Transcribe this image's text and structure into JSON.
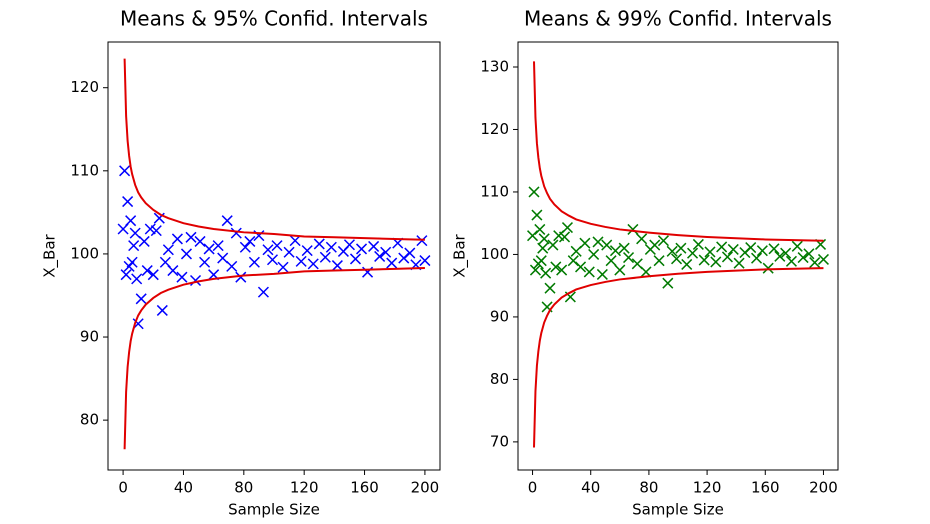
{
  "chart_data": [
    {
      "type": "scatter",
      "title": "Means & 95% Confid. Intervals",
      "xlabel": "Sample Size",
      "ylabel": "X_Bar",
      "xlim": [
        -10,
        210
      ],
      "ylim": [
        74,
        125.5
      ],
      "xticks": [
        0,
        40,
        80,
        120,
        160,
        200
      ],
      "yticks": [
        80,
        90,
        100,
        110,
        120
      ],
      "points": {
        "color": "#0000ff",
        "x": [
          0,
          1,
          2,
          3,
          4,
          5,
          6,
          7,
          8,
          9,
          10,
          12,
          14,
          16,
          18,
          20,
          22,
          24,
          26,
          28,
          30,
          33,
          36,
          39,
          42,
          45,
          48,
          51,
          54,
          57,
          60,
          63,
          66,
          69,
          72,
          75,
          78,
          81,
          84,
          87,
          90,
          93,
          96,
          99,
          102,
          106,
          110,
          114,
          118,
          122,
          126,
          130,
          134,
          138,
          142,
          146,
          150,
          154,
          158,
          162,
          166,
          170,
          174,
          178,
          182,
          186,
          190,
          194,
          198,
          200
        ],
        "y": [
          103,
          110,
          97.5,
          106.3,
          98.5,
          104,
          99,
          101,
          102.5,
          97,
          91.6,
          94.6,
          101.5,
          98,
          103,
          97.5,
          102.8,
          104.3,
          93.2,
          99,
          100.5,
          98,
          101.8,
          97.2,
          100,
          102,
          96.8,
          101.5,
          99,
          100.6,
          97.5,
          101,
          99.5,
          104,
          98.5,
          102.5,
          97.2,
          100.8,
          101.5,
          99,
          102.2,
          95.4,
          100.5,
          99.3,
          101,
          98.4,
          100.2,
          101.6,
          99.1,
          100.4,
          98.8,
          101.2,
          99.6,
          100.8,
          98.6,
          100.3,
          101.1,
          99.4,
          100.6,
          97.8,
          100.9,
          99.7,
          100.2,
          98.9,
          101.3,
          99.5,
          100.1,
          98.7,
          101.6,
          99.2
        ]
      },
      "bounds": {
        "color": "#e00000",
        "x": [
          1,
          2,
          3,
          4,
          5,
          6,
          8,
          10,
          12,
          15,
          20,
          25,
          30,
          40,
          50,
          60,
          80,
          100,
          120,
          140,
          160,
          180,
          200
        ],
        "upper": [
          123.5,
          116.6,
          113.6,
          111.8,
          110.5,
          109.6,
          108.3,
          107.4,
          106.8,
          106.1,
          105.3,
          104.7,
          104.3,
          103.7,
          103.3,
          103.0,
          102.6,
          102.4,
          102.1,
          102.0,
          101.9,
          101.8,
          101.7
        ],
        "lower": [
          76.5,
          83.4,
          86.4,
          88.2,
          89.5,
          90.4,
          91.7,
          92.6,
          93.2,
          93.9,
          94.7,
          95.3,
          95.7,
          96.3,
          96.7,
          97.0,
          97.4,
          97.6,
          97.9,
          98.0,
          98.1,
          98.2,
          98.3
        ]
      }
    },
    {
      "type": "scatter",
      "title": "Means & 99% Confid. Intervals",
      "xlabel": "Sample Size",
      "ylabel": "X_Bar",
      "xlim": [
        -10,
        210
      ],
      "ylim": [
        65.5,
        134
      ],
      "xticks": [
        0,
        40,
        80,
        120,
        160,
        200
      ],
      "yticks": [
        70,
        80,
        90,
        100,
        110,
        120,
        130
      ],
      "points": {
        "color": "#007a00",
        "x": [
          0,
          1,
          2,
          3,
          4,
          5,
          6,
          7,
          8,
          9,
          10,
          12,
          14,
          16,
          18,
          20,
          22,
          24,
          26,
          28,
          30,
          33,
          36,
          39,
          42,
          45,
          48,
          51,
          54,
          57,
          60,
          63,
          66,
          69,
          72,
          75,
          78,
          81,
          84,
          87,
          90,
          93,
          96,
          99,
          102,
          106,
          110,
          114,
          118,
          122,
          126,
          130,
          134,
          138,
          142,
          146,
          150,
          154,
          158,
          162,
          166,
          170,
          174,
          178,
          182,
          186,
          190,
          194,
          198,
          200
        ],
        "y": [
          103,
          110,
          97.5,
          106.3,
          98.5,
          104,
          99,
          101,
          102.5,
          97,
          91.6,
          94.6,
          101.5,
          98,
          103,
          97.5,
          102.8,
          104.3,
          93.2,
          99,
          100.5,
          98,
          101.8,
          97.2,
          100,
          102,
          96.8,
          101.5,
          99,
          100.6,
          97.5,
          101,
          99.5,
          104,
          98.5,
          102.5,
          97.2,
          100.8,
          101.5,
          99,
          102.2,
          95.4,
          100.5,
          99.3,
          101,
          98.4,
          100.2,
          101.6,
          99.1,
          100.4,
          98.8,
          101.2,
          99.6,
          100.8,
          98.6,
          100.3,
          101.1,
          99.4,
          100.6,
          97.8,
          100.9,
          99.7,
          100.2,
          98.9,
          101.3,
          99.5,
          100.1,
          98.7,
          101.6,
          99.2
        ]
      },
      "bounds": {
        "color": "#e00000",
        "x": [
          1,
          2,
          3,
          4,
          5,
          6,
          8,
          10,
          12,
          15,
          20,
          25,
          30,
          40,
          50,
          60,
          80,
          100,
          120,
          140,
          160,
          180,
          200
        ],
        "upper": [
          130.9,
          121.9,
          117.8,
          115.5,
          113.8,
          112.6,
          110.9,
          109.8,
          108.9,
          108.0,
          106.9,
          106.2,
          105.6,
          104.9,
          104.4,
          104.0,
          103.5,
          103.1,
          102.8,
          102.6,
          102.4,
          102.3,
          102.2
        ],
        "lower": [
          69.1,
          78.1,
          82.2,
          84.5,
          86.2,
          87.4,
          89.1,
          90.2,
          91.1,
          92.0,
          93.1,
          93.8,
          94.4,
          95.1,
          95.6,
          96.0,
          96.5,
          96.9,
          97.2,
          97.4,
          97.6,
          97.7,
          97.8
        ]
      }
    }
  ]
}
